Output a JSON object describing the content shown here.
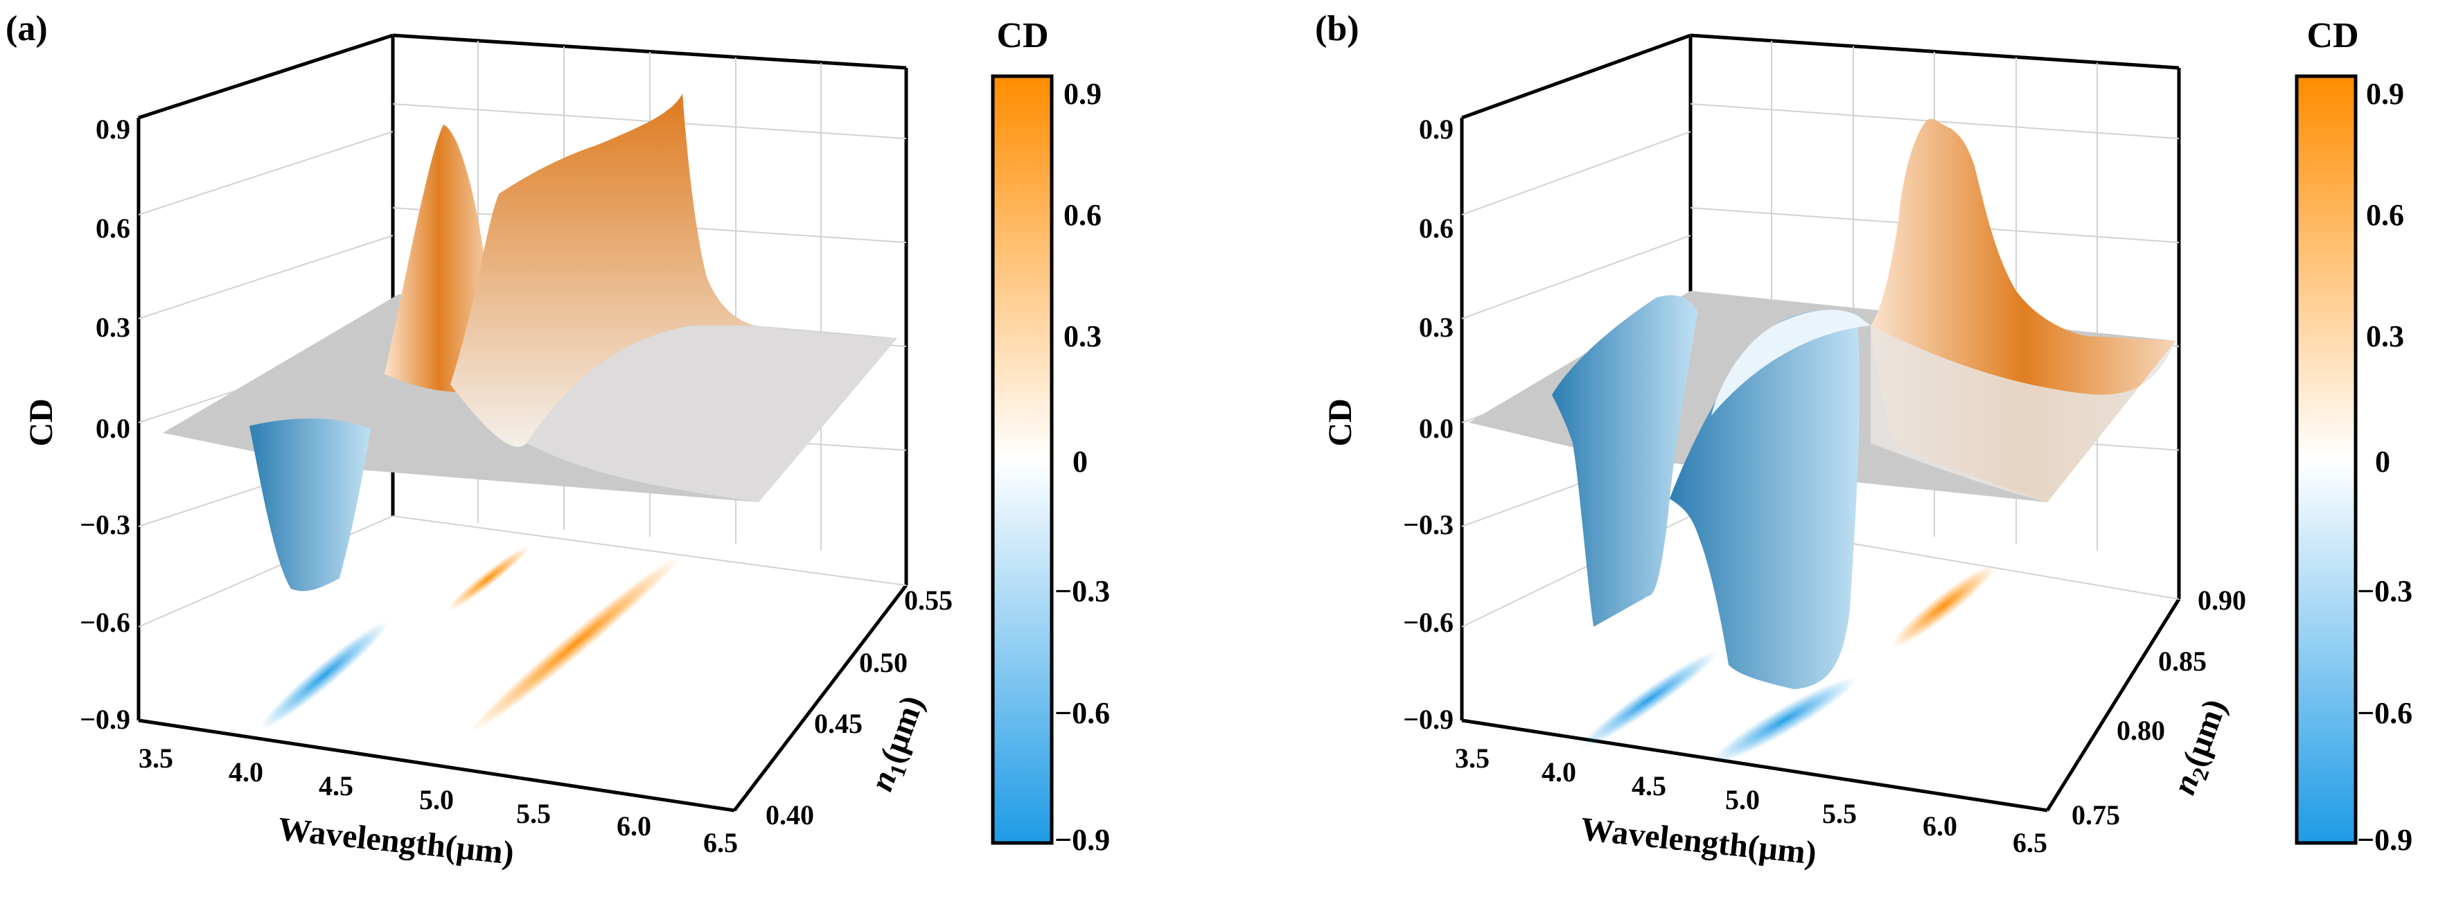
{
  "colors": {
    "positive": "#ff8c00",
    "negative": "#1e9be6",
    "zero": "#ffffff",
    "flat_surface": "#c9c9c9",
    "grid": "#d2d2d2",
    "axes": "#000000"
  },
  "chart_data": [
    {
      "type": "surface3d",
      "panel_label": "(a)",
      "xlabel": "Wavelength(μm)",
      "ylabel_var": "n",
      "ylabel_sub": "1",
      "ylabel_unit": "(μm)",
      "zlabel": "CD",
      "x_ticks": [
        "3.5",
        "4.0",
        "4.5",
        "5.0",
        "5.5",
        "6.0",
        "6.5"
      ],
      "y_ticks": [
        "0.40",
        "0.45",
        "0.50",
        "0.55"
      ],
      "z_ticks": [
        "−0.9",
        "−0.6",
        "−0.3",
        "0.0",
        "0.3",
        "0.6",
        "0.9"
      ],
      "xlim": [
        3.5,
        6.5
      ],
      "ylim": [
        0.4,
        0.55
      ],
      "zlim": [
        -0.9,
        0.9
      ],
      "colorbar": {
        "title": "CD",
        "ticks": [
          "0.9",
          "0.6",
          "0.3",
          "0",
          "−0.3",
          "−0.6",
          "−0.9"
        ],
        "range": [
          -0.9,
          0.9
        ]
      },
      "features": [
        {
          "kind": "dip",
          "center_wavelength_um": 4.2,
          "n_range": [
            0.4,
            0.5
          ],
          "cd_min": -0.5
        },
        {
          "kind": "peak",
          "center_wavelength_um": 4.9,
          "n_range": [
            0.5,
            0.55
          ],
          "cd_max": 0.86
        },
        {
          "kind": "peak",
          "center_wavelength_um": 5.5,
          "n_range": [
            0.4,
            0.55
          ],
          "cd_max": 0.93
        }
      ]
    },
    {
      "type": "surface3d",
      "panel_label": "(b)",
      "xlabel": "Wavelength(μm)",
      "ylabel_var": "n",
      "ylabel_sub": "2",
      "ylabel_unit": "(μm)",
      "zlabel": "CD",
      "x_ticks": [
        "3.5",
        "4.0",
        "4.5",
        "5.0",
        "5.5",
        "6.0",
        "6.5"
      ],
      "y_ticks": [
        "0.75",
        "0.80",
        "0.85",
        "0.90"
      ],
      "z_ticks": [
        "−0.9",
        "−0.6",
        "−0.3",
        "0.0",
        "0.3",
        "0.6",
        "0.9"
      ],
      "xlim": [
        3.5,
        6.5
      ],
      "ylim": [
        0.75,
        0.9
      ],
      "zlim": [
        -0.9,
        0.9
      ],
      "colorbar": {
        "title": "CD",
        "ticks": [
          "0.9",
          "0.6",
          "0.3",
          "0",
          "−0.3",
          "−0.6",
          "−0.9"
        ],
        "range": [
          -0.9,
          0.9
        ]
      },
      "features": [
        {
          "kind": "dip",
          "center_wavelength_um": 4.3,
          "n_range": [
            0.75,
            0.88
          ],
          "cd_min": -0.7
        },
        {
          "kind": "dip",
          "center_wavelength_um": 5.1,
          "n_range": [
            0.75,
            0.85
          ],
          "cd_min": -0.78
        },
        {
          "kind": "peak",
          "center_wavelength_um": 5.8,
          "n_range": [
            0.82,
            0.9
          ],
          "cd_max": 0.92
        }
      ]
    }
  ]
}
